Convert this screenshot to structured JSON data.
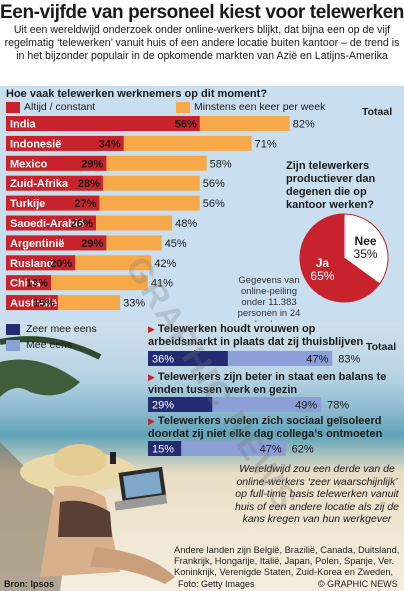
{
  "title": "Een-vijfde van personeel kiest voor telewerken",
  "subtitle": "Uit een wereldwijd onderzoek onder online-werkers blijkt, dat bijna een op de vijf regelmatig ‘telewerken’ vanuit huis of een andere locatie buiten kantoor – de trend is in het bijzonder populair in de opkomende markten van Azië en Latijns-Amerika",
  "question": "Hoe vaak telewerken werknemers op dit moment?",
  "legend": {
    "always": "Altijd / constant",
    "weekly": "Minstens een keer per week"
  },
  "totaal_label": "Totaal",
  "pie_question": "Zijn telewerkers productiever dan degenen die op kantoor werken?",
  "survey_note": "Gegevens van online-peiling onder 11.383 personen in 24 landen",
  "legend2": {
    "strong": "Zeer mee eens",
    "agree": "Mee eens"
  },
  "statements": [
    "Telewerken houdt vrouwen op arbeidsmarkt in plaats dat zij thuisblijven voor gezin",
    "Telewerkers zijn beter in staat een balans te vinden tussen werk en gezin",
    "Telewerkers voelen zich sociaal geïsoleerd doordat zij niet elke dag collega’s ontmoeten"
  ],
  "paragraph": "Wereldwijd zou een derde van de online-werkers ‘zeer waarschijnlijk’ op full-time basis telewerken vanuit huis of een andere locatie als zij de kans kregen van hun werkgever",
  "countries_note": "Andere landen zijn België, Brazilië, Canada, Duitsland, Frankrijk, Hongarije, Italië, Japan, Polen, Spanje, Ver. Koninkrijk, Verenigde Staten, Zuid-Korea en Zweden,",
  "footer": {
    "source": "Bron: Ipsos",
    "photo": "Foto: Getty Images",
    "copyright": "© GRAPHIC NEWS"
  },
  "watermark": "GRAPHIC NEWS",
  "colors": {
    "red": "#c8232c",
    "orange": "#f7a94a",
    "darkblue": "#232c73",
    "lightblue": "#8c9fd6",
    "panel": "#c9dff0"
  },
  "chart_data": [
    {
      "type": "bar",
      "title": "Hoe vaak telewerken werknemers op dit moment?",
      "categories": [
        "India",
        "Indonesië",
        "Mexico",
        "Zuid-Afrika",
        "Turkije",
        "Saoedi-Arabië",
        "Argentinië",
        "Rusland",
        "China",
        "Australië"
      ],
      "series": [
        {
          "name": "Altijd / constant",
          "values": [
            56,
            34,
            29,
            28,
            27,
            26,
            29,
            20,
            13,
            15
          ]
        },
        {
          "name": "Minstens een keer per week",
          "values": [
            82,
            71,
            58,
            56,
            56,
            48,
            45,
            42,
            41,
            33
          ]
        }
      ],
      "value_labels": {
        "always": [
          "56%",
          "34%",
          "29%",
          "28%",
          "27%",
          "26%",
          "29%",
          "20%",
          "13%",
          "15%"
        ],
        "weekly": [
          "82%",
          "71%",
          "58%",
          "56%",
          "56%",
          "48%",
          "45%",
          "42%",
          "41%",
          "33%"
        ]
      },
      "xlim": [
        0,
        100
      ]
    },
    {
      "type": "pie",
      "title": "Zijn telewerkers productiever dan degenen die op kantoor werken?",
      "labels": [
        "Ja",
        "Nee"
      ],
      "values": [
        65,
        35
      ],
      "value_labels": [
        "65%",
        "35%"
      ]
    },
    {
      "type": "bar",
      "series": [
        {
          "name": "Zeer mee eens",
          "values": [
            36,
            29,
            15
          ]
        },
        {
          "name": "Mee eens",
          "values": [
            47,
            49,
            47
          ]
        }
      ],
      "totals": [
        83,
        78,
        62
      ],
      "value_labels": {
        "strong": [
          "36%",
          "29%",
          "15%"
        ],
        "agree": [
          "47%",
          "49%",
          "47%"
        ],
        "totals": [
          "83%",
          "78%",
          "62%"
        ]
      },
      "xlim": [
        0,
        100
      ]
    }
  ]
}
